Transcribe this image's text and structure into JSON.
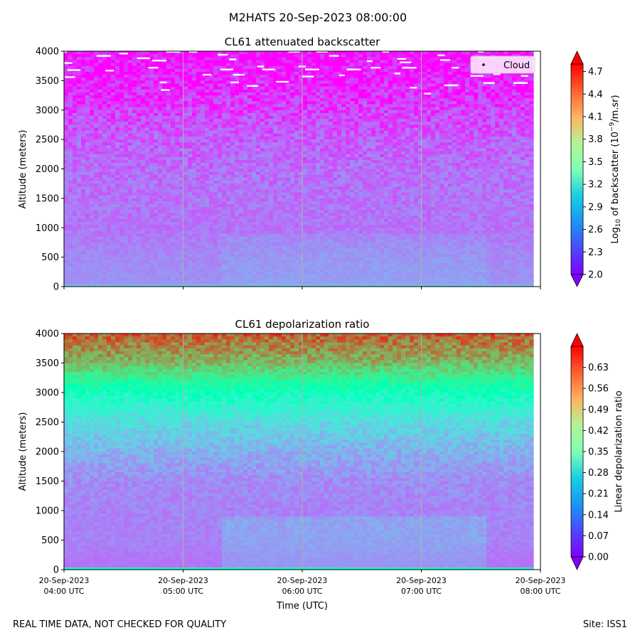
{
  "figure": {
    "suptitle": "M2HATS 20-Sep-2023 08:00:00",
    "footer_left": "REAL TIME DATA, NOT CHECKED FOR QUALITY",
    "footer_right": "Site: ISS1"
  },
  "chart_data": [
    {
      "type": "heatmap",
      "title": "CL61 attenuated backscatter",
      "ylabel": "Altitude (meters)",
      "xlabel": "",
      "ylim": [
        0,
        4000
      ],
      "yticks": [
        "0",
        "500",
        "1000",
        "1500",
        "2000",
        "2500",
        "3000",
        "3500",
        "4000"
      ],
      "xticks": [],
      "grid": "vertical lines at hourly ticks",
      "legend": {
        "entries": [
          "Cloud"
        ],
        "placement": "top-right"
      },
      "colorbar": {
        "label": "Log10 of backscatter (10^-9/m.sr)",
        "colormap": "rainbow",
        "range": [
          2.0,
          4.8
        ],
        "ticks": [
          "2.0",
          "2.3",
          "2.6",
          "2.9",
          "3.2",
          "3.5",
          "3.8",
          "4.1",
          "4.4",
          "4.7"
        ]
      },
      "profile": [
        {
          "altitude": 0,
          "value": 2.55
        },
        {
          "altitude": 500,
          "value": 2.5
        },
        {
          "altitude": 1000,
          "value": 2.42
        },
        {
          "altitude": 1500,
          "value": 2.42
        },
        {
          "altitude": 2000,
          "value": 2.4
        },
        {
          "altitude": 2500,
          "value": 2.33
        },
        {
          "altitude": 3000,
          "value": 2.22
        },
        {
          "altitude": 3500,
          "value": 2.1
        },
        {
          "altitude": 4000,
          "value": 2.02
        }
      ],
      "cloud_detections": [
        {
          "time": "04:00",
          "altitude": 3990
        },
        {
          "time": "04:02",
          "altitude": 3800
        },
        {
          "time": "04:03",
          "altitude": 3560
        },
        {
          "time": "04:05",
          "altitude": 3680
        },
        {
          "time": "04:20",
          "altitude": 3920
        },
        {
          "time": "04:23",
          "altitude": 3670
        },
        {
          "time": "04:30",
          "altitude": 3960
        },
        {
          "time": "04:40",
          "altitude": 3880
        },
        {
          "time": "04:45",
          "altitude": 3720
        },
        {
          "time": "04:48",
          "altitude": 3840
        },
        {
          "time": "04:50",
          "altitude": 3470
        },
        {
          "time": "04:51",
          "altitude": 3340
        },
        {
          "time": "04:55",
          "altitude": 3990
        },
        {
          "time": "05:05",
          "altitude": 3990
        },
        {
          "time": "05:12",
          "altitude": 3600
        },
        {
          "time": "05:20",
          "altitude": 3940
        },
        {
          "time": "05:22",
          "altitude": 3690
        },
        {
          "time": "05:25",
          "altitude": 3860
        },
        {
          "time": "05:28",
          "altitude": 3600
        },
        {
          "time": "05:26",
          "altitude": 3470
        },
        {
          "time": "05:35",
          "altitude": 3410
        },
        {
          "time": "05:39",
          "altitude": 3740
        },
        {
          "time": "05:43",
          "altitude": 3690
        },
        {
          "time": "05:50",
          "altitude": 3480
        },
        {
          "time": "05:56",
          "altitude": 3990
        },
        {
          "time": "06:00",
          "altitude": 3740
        },
        {
          "time": "06:03",
          "altitude": 3570
        },
        {
          "time": "06:05",
          "altitude": 3690
        },
        {
          "time": "06:10",
          "altitude": 3990
        },
        {
          "time": "06:16",
          "altitude": 3920
        },
        {
          "time": "06:20",
          "altitude": 3590
        },
        {
          "time": "06:26",
          "altitude": 3690
        },
        {
          "time": "06:34",
          "altitude": 3830
        },
        {
          "time": "06:37",
          "altitude": 3720
        },
        {
          "time": "06:42",
          "altitude": 3990
        },
        {
          "time": "06:48",
          "altitude": 3620
        },
        {
          "time": "06:50",
          "altitude": 3870
        },
        {
          "time": "06:52",
          "altitude": 3810
        },
        {
          "time": "06:54",
          "altitude": 3720
        },
        {
          "time": "06:56",
          "altitude": 3380
        },
        {
          "time": "07:03",
          "altitude": 3280
        },
        {
          "time": "07:10",
          "altitude": 3930
        },
        {
          "time": "07:12",
          "altitude": 3850
        },
        {
          "time": "07:15",
          "altitude": 3420
        },
        {
          "time": "07:17",
          "altitude": 3720
        },
        {
          "time": "07:28",
          "altitude": 3580
        },
        {
          "time": "07:30",
          "altitude": 3990
        },
        {
          "time": "07:34",
          "altitude": 3460
        },
        {
          "time": "07:38",
          "altitude": 3610
        },
        {
          "time": "07:50",
          "altitude": 3460
        },
        {
          "time": "07:52",
          "altitude": 3580
        }
      ]
    },
    {
      "type": "heatmap",
      "title": "CL61 depolarization ratio",
      "ylabel": "Altitude (meters)",
      "xlabel": "Time (UTC)",
      "ylim": [
        0,
        4000
      ],
      "yticks": [
        "0",
        "500",
        "1000",
        "1500",
        "2000",
        "2500",
        "3000",
        "3500",
        "4000"
      ],
      "xticks": [
        {
          "line1": "20-Sep-2023",
          "line2": "04:00 UTC"
        },
        {
          "line1": "20-Sep-2023",
          "line2": "05:00 UTC"
        },
        {
          "line1": "20-Sep-2023",
          "line2": "06:00 UTC"
        },
        {
          "line1": "20-Sep-2023",
          "line2": "07:00 UTC"
        },
        {
          "line1": "20-Sep-2023",
          "line2": "08:00 UTC"
        }
      ],
      "grid": "vertical lines at hourly ticks",
      "colorbar": {
        "label": "Linear depolarization ratio",
        "colormap": "rainbow",
        "range": [
          0.0,
          0.7
        ],
        "ticks": [
          "0.00",
          "0.07",
          "0.14",
          "0.21",
          "0.28",
          "0.35",
          "0.42",
          "0.49",
          "0.56",
          "0.63"
        ]
      },
      "profile": [
        {
          "altitude": 0,
          "value": 0.1
        },
        {
          "altitude": 500,
          "value": 0.12
        },
        {
          "altitude": 1000,
          "value": 0.12
        },
        {
          "altitude": 1500,
          "value": 0.13
        },
        {
          "altitude": 2000,
          "value": 0.17
        },
        {
          "altitude": 2500,
          "value": 0.23
        },
        {
          "altitude": 3000,
          "value": 0.33
        },
        {
          "altitude": 3500,
          "value": 0.52
        },
        {
          "altitude": 4000,
          "value": 0.62
        }
      ]
    }
  ]
}
